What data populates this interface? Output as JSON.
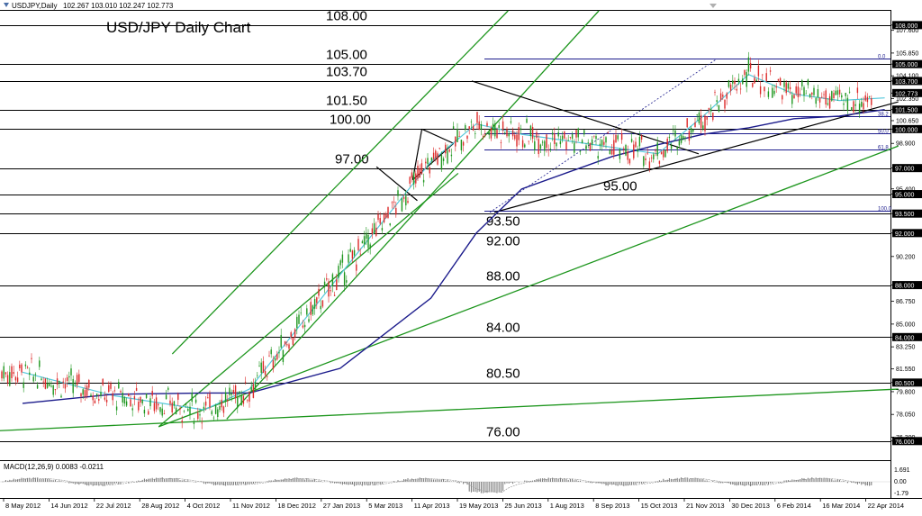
{
  "header": {
    "symbol": "USDJPY,Daily",
    "ohlc": "102.267 103.010 102.247 102.773"
  },
  "chart_data": {
    "type": "line",
    "title": "USD/JPY Daily Chart",
    "price_axis": {
      "min": 74.6,
      "max": 109.1,
      "ticks": [
        108.0,
        107.6,
        105.85,
        105.0,
        104.1,
        103.7,
        102.773,
        102.35,
        101.5,
        100.65,
        100.0,
        98.9,
        97.0,
        95.4,
        95.0,
        93.5,
        92.0,
        90.2,
        88.0,
        86.75,
        85.0,
        84.0,
        83.25,
        81.55,
        80.5,
        79.8,
        78.05,
        76.3,
        76.0
      ]
    },
    "highlighted_ticks": [
      108.0,
      105.0,
      103.7,
      102.773,
      101.5,
      100.0,
      97.0,
      95.0,
      93.5,
      92.0,
      88.0,
      84.0,
      80.5,
      76.0
    ],
    "x_axis": {
      "labels": [
        "8 May 2012",
        "14 Jun 2012",
        "22 Jul 2012",
        "28 Aug 2012",
        "4 Oct 2012",
        "11 Nov 2012",
        "18 Dec 2012",
        "27 Jan 2013",
        "5 Mar 2013",
        "11 Apr 2013",
        "19 May 2013",
        "25 Jun 2013",
        "1 Aug 2013",
        "8 Sep 2013",
        "15 Oct 2013",
        "21 Nov 2013",
        "30 Dec 2013",
        "6 Feb 2014",
        "16 Mar 2014",
        "22 Apr 2014"
      ]
    },
    "horizontal_levels": [
      {
        "value": 108.0,
        "label": "108.00"
      },
      {
        "value": 105.0,
        "label": "105.00"
      },
      {
        "value": 103.7,
        "label": "103.70"
      },
      {
        "value": 101.5,
        "label": "101.50"
      },
      {
        "value": 100.0,
        "label": "100.00"
      },
      {
        "value": 97.0,
        "label": "97.00"
      },
      {
        "value": 95.0,
        "label": "95.00"
      },
      {
        "value": 93.5,
        "label": "93.50"
      },
      {
        "value": 92.0,
        "label": "92.00"
      },
      {
        "value": 88.0,
        "label": "88.00"
      },
      {
        "value": 84.0,
        "label": "84.00"
      },
      {
        "value": 80.5,
        "label": "80.50"
      },
      {
        "value": 76.0,
        "label": "76.00"
      }
    ],
    "fibonacci": {
      "labels": [
        "0.0",
        "38.2",
        "50.0",
        "61.8",
        "100.0"
      ],
      "values": [
        105.4,
        101.0,
        99.7,
        98.4,
        93.75
      ]
    },
    "series": [
      {
        "name": "",
        "color": "#55c8dc",
        "x": [
          "8 May 2012",
          "22 Jul 2012",
          "4 Oct 2012",
          "11 Nov 2012",
          "27 Jan 2013",
          "11 Apr 2013",
          "19 May 2013",
          "25 Jun 2013",
          "8 Sep 2013",
          "15 Oct 2013",
          "21 Nov 2013",
          "30 Dec 2013",
          "6 Feb 2014",
          "16 Mar 2014",
          "22 Apr 2014"
        ],
        "y": [
          81.3,
          79.5,
          78.4,
          80.0,
          88.8,
          97.5,
          100.4,
          99.6,
          98.6,
          98.1,
          101.0,
          104.2,
          102.7,
          102.2,
          102.4
        ]
      },
      {
        "name": "",
        "color": "#1c1c8c",
        "x": [
          "8 May 2012",
          "22 Jul 2012",
          "4 Oct 2012",
          "11 Nov 2012",
          "27 Jan 2013",
          "11 Apr 2013",
          "19 May 2013",
          "25 Jun 2013",
          "8 Sep 2013",
          "15 Oct 2013",
          "21 Nov 2013",
          "30 Dec 2013",
          "6 Feb 2014",
          "16 Mar 2014",
          "22 Apr 2014"
        ],
        "y": [
          78.9,
          79.6,
          79.7,
          79.7,
          81.6,
          87.0,
          92.0,
          95.4,
          97.9,
          98.8,
          99.6,
          100.1,
          100.8,
          101.0,
          101.5
        ]
      }
    ],
    "macd": {
      "label": "MACD(12,26,9) 0.0083 -0.0211",
      "ticks": [
        "1.691",
        "0.00",
        "-1.79"
      ]
    },
    "colors": {
      "channel": "#1e961e",
      "trendline": "#000000",
      "level": "#000000",
      "fib": "#1c1c8c",
      "candle_up": "#1e961e",
      "candle_down": "#dc2828"
    }
  }
}
